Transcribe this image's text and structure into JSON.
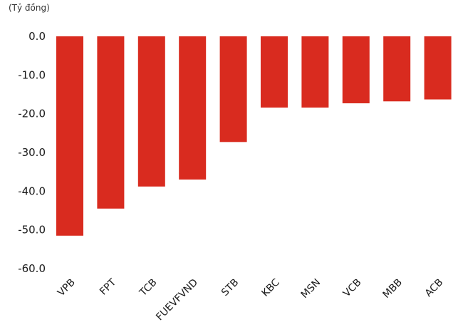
{
  "chart_data": {
    "type": "bar",
    "unit_label": "(Tỷ đồng)",
    "categories": [
      "VPB",
      "FPT",
      "TCB",
      "FUEVFVND",
      "STB",
      "KBC",
      "MSN",
      "VCB",
      "MBB",
      "ACB"
    ],
    "values": [
      -51.5,
      -44.5,
      -38.8,
      -37.0,
      -27.3,
      -18.4,
      -18.4,
      -17.3,
      -16.8,
      -16.3
    ],
    "ylim": [
      -60,
      0
    ],
    "yticks": [
      0,
      -10,
      -20,
      -30,
      -40,
      -50,
      -60
    ],
    "ytick_labels": [
      "0.0",
      "-10.0",
      "-20.0",
      "-30.0",
      "-40.0",
      "-50.0",
      "-60.0"
    ],
    "bar_color": "#d92b1f",
    "grid": false,
    "legend": "none"
  }
}
